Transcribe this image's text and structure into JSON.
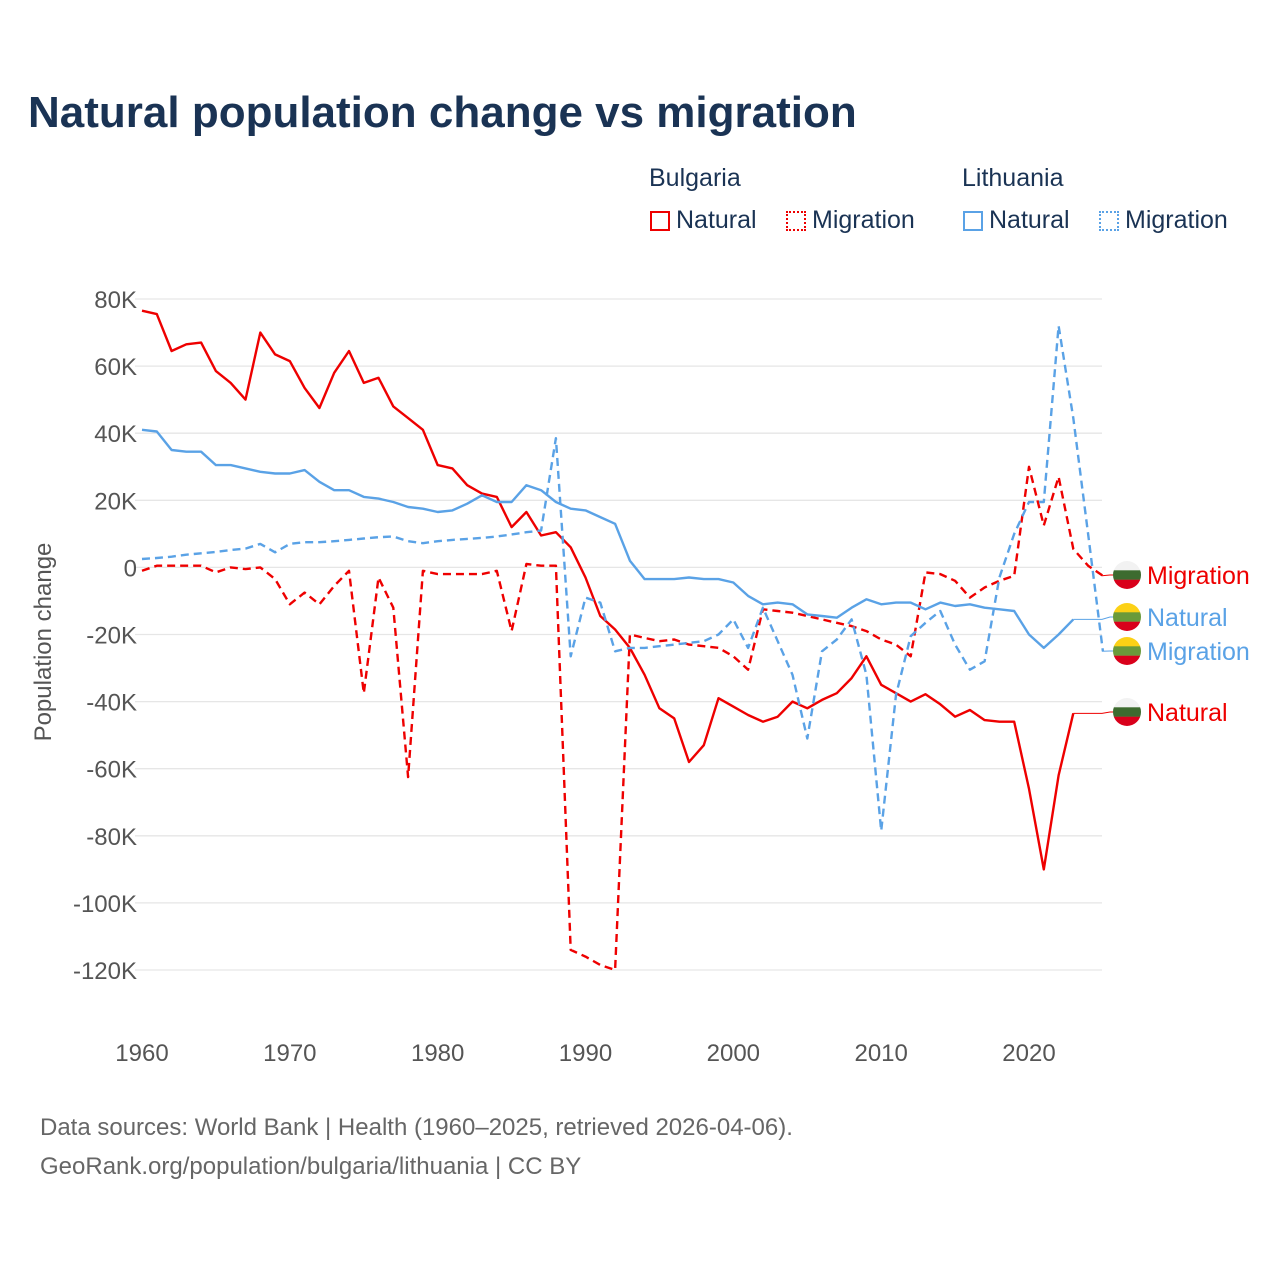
{
  "title": "Natural population change vs migration",
  "legend": {
    "groups": [
      {
        "name": "Bulgaria",
        "items": [
          "Natural",
          "Migration"
        ]
      },
      {
        "name": "Lithuania",
        "items": [
          "Natural",
          "Migration"
        ]
      }
    ]
  },
  "footer": {
    "line1": "Data sources: World Bank | Health (1960–2025, retrieved 2026-04-06).",
    "line2": "GeoRank.org/population/bulgaria/lithuania | CC BY"
  },
  "colors": {
    "bulgaria": "#ee0000",
    "lithuania": "#5aa2e6",
    "title": "#1a3354"
  },
  "chart_data": {
    "type": "line",
    "title": "Natural population change vs migration",
    "xlabel": "",
    "ylabel": "Population change",
    "xlim": [
      1960,
      2025
    ],
    "ylim": [
      -120000,
      80000
    ],
    "xticks": [
      "1960",
      "1970",
      "1980",
      "1990",
      "2000",
      "2010",
      "2020"
    ],
    "yticks": [
      "80K",
      "60K",
      "40K",
      "20K",
      "0",
      "-20K",
      "-40K",
      "-60K",
      "-80K",
      "-100K",
      "-120K"
    ],
    "grid": true,
    "x_start": 1960,
    "series": [
      {
        "name": "Bulgaria Natural",
        "label": "Natural",
        "color": "#ee0000",
        "dash": false,
        "flag": "bulgaria",
        "values": [
          76.5,
          75.5,
          64.5,
          66.5,
          67,
          58.5,
          55,
          50,
          70,
          63.5,
          61.5,
          53.5,
          47.5,
          58,
          64.5,
          55,
          56.5,
          48,
          44.5,
          41,
          30.5,
          29.5,
          24.5,
          22,
          21,
          12,
          16.5,
          9.5,
          10.5,
          6,
          -3,
          -14.5,
          -18.5,
          -24,
          -32,
          -42,
          -45,
          -58,
          -53,
          -39,
          -41.5,
          -44,
          -46,
          -44.5,
          -40,
          -42,
          -39.5,
          -37.5,
          -33,
          -26.5,
          -35,
          -37.5,
          -40,
          -37.8,
          -40.8,
          -44.5,
          -42.5,
          -45.5,
          -46,
          -46,
          -66,
          -90,
          -62,
          -43.5,
          null,
          null
        ]
      },
      {
        "name": "Bulgaria Migration",
        "label": "Migration",
        "color": "#ee0000",
        "dash": true,
        "flag": "bulgaria",
        "values": [
          -1,
          0.5,
          0.5,
          0.5,
          0.5,
          -1.5,
          0,
          -0.5,
          0,
          -3.5,
          -11,
          -7.5,
          -11,
          -5.5,
          -1,
          -37.5,
          -3,
          -12,
          -62.5,
          -1,
          -2,
          -2,
          -2,
          -2,
          -1,
          -19,
          1,
          0.5,
          0.5,
          -114,
          -116,
          -118.5,
          -120,
          -20,
          -21,
          -22,
          -21.5,
          -23,
          -23.5,
          -24,
          -26.5,
          -30.5,
          -12.5,
          -13,
          -13.5,
          -14.5,
          -15.5,
          -16.5,
          -17.5,
          -19,
          -21.5,
          -23,
          -26.5,
          -1.5,
          -2,
          -4,
          -9,
          -6,
          -4,
          -2.5,
          30,
          12.5,
          27,
          5.5,
          0.5,
          -2.5
        ]
      },
      {
        "name": "Lithuania Natural",
        "label": "Natural",
        "color": "#5aa2e6",
        "dash": false,
        "flag": "lithuania",
        "values": [
          41,
          40.5,
          35,
          34.5,
          34.5,
          30.5,
          30.5,
          29.5,
          28.5,
          28,
          28,
          29,
          25.5,
          23,
          23,
          21,
          20.5,
          19.5,
          18,
          17.5,
          16.5,
          17,
          19,
          21.5,
          19.5,
          19.5,
          24.5,
          23,
          19.5,
          17.5,
          17,
          15,
          13,
          2,
          -3.5,
          -3.5,
          -3.5,
          -3,
          -3.5,
          -3.5,
          -4.5,
          -8.5,
          -11,
          -10.5,
          -11,
          -14,
          -14.5,
          -15,
          -12,
          -9.5,
          -11,
          -10.5,
          -10.5,
          -12.5,
          -10.5,
          -11.5,
          -11,
          -12,
          -12.5,
          -13,
          -20,
          -24,
          -20,
          -15.5,
          null,
          null
        ]
      },
      {
        "name": "Lithuania Migration",
        "label": "Migration",
        "color": "#5aa2e6",
        "dash": true,
        "flag": "lithuania",
        "values": [
          2.5,
          2.8,
          3.2,
          3.8,
          4.2,
          4.6,
          5.2,
          5.6,
          7,
          4.5,
          7,
          7.5,
          7.5,
          7.8,
          8.2,
          8.6,
          9,
          9.2,
          7.8,
          7.2,
          7.8,
          8.2,
          8.5,
          8.8,
          9.2,
          9.8,
          10.5,
          11,
          38.5,
          -26.5,
          -9,
          -10.5,
          -25,
          -24,
          -24,
          -23.5,
          -23,
          -22.5,
          -22,
          -20,
          -15.5,
          -24,
          -12,
          -22,
          -32,
          -51,
          -25,
          -21.5,
          -15.5,
          -32,
          -78.5,
          -38,
          -20.5,
          -16.5,
          -13,
          -23,
          -30.5,
          -28,
          -3,
          10,
          19.5,
          19.5,
          72,
          44.5,
          10,
          -25
        ]
      }
    ],
    "value_unit": "thousands",
    "end_labels": [
      {
        "series": 0,
        "text": "Natural"
      },
      {
        "series": 1,
        "text": "Migration"
      },
      {
        "series": 2,
        "text": "Natural"
      },
      {
        "series": 3,
        "text": "Migration"
      }
    ]
  }
}
